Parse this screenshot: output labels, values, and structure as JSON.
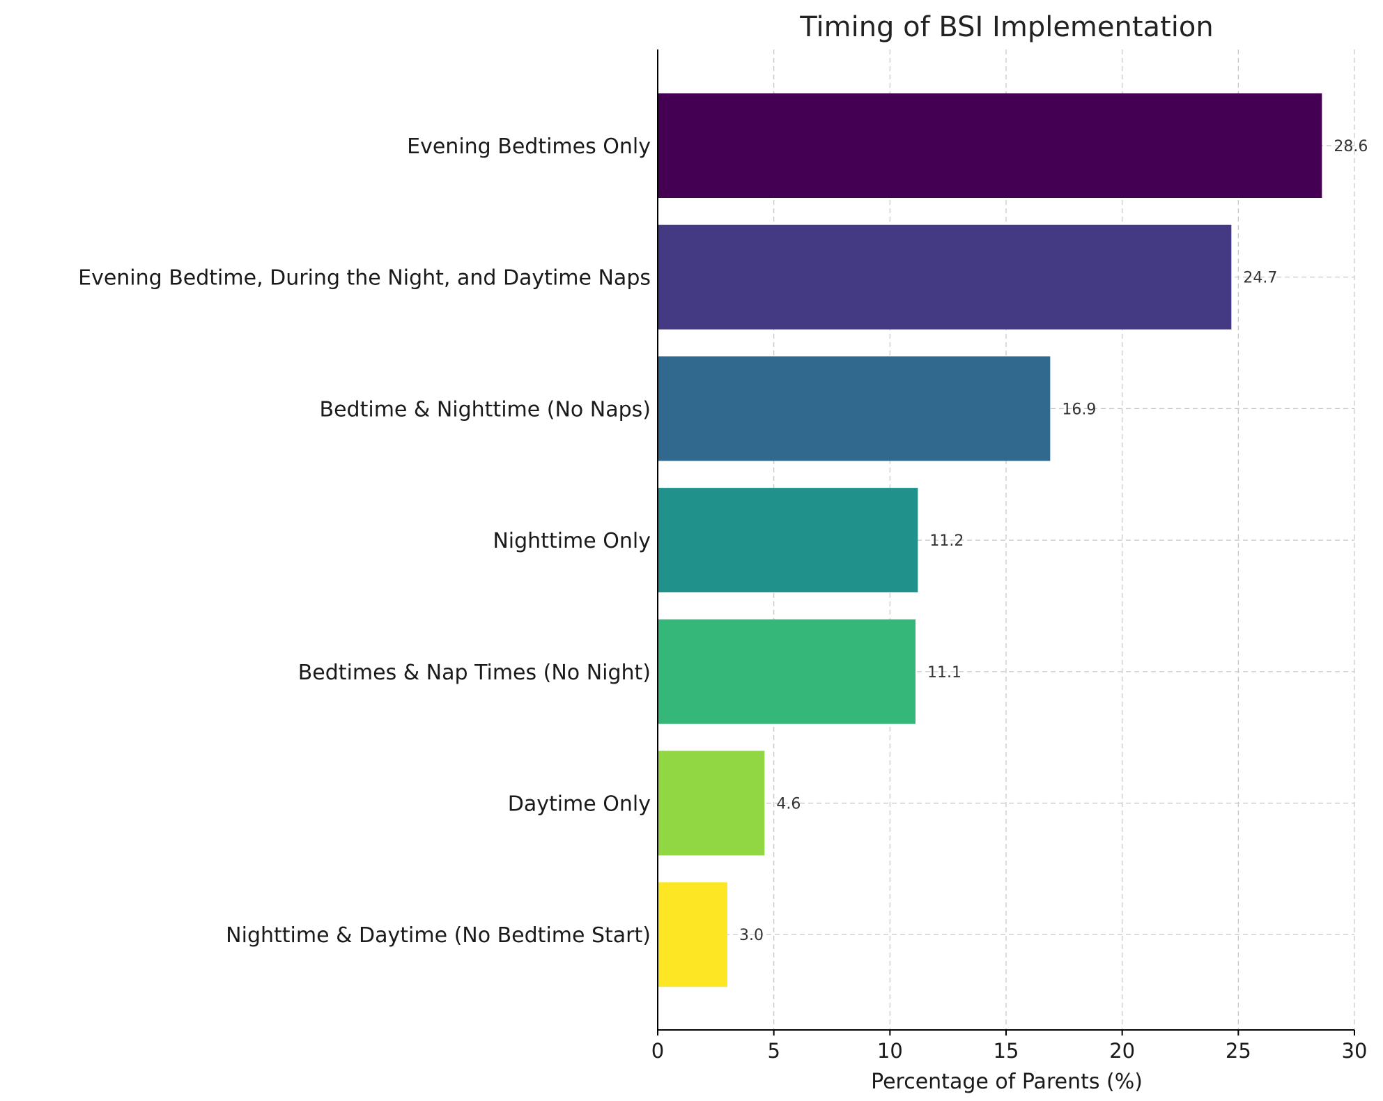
{
  "chart_data": {
    "type": "bar",
    "orientation": "horizontal",
    "title": "Timing of BSI Implementation",
    "xlabel": "Percentage of Parents (%)",
    "ylabel": "",
    "xlim": [
      0,
      30
    ],
    "xticks": [
      0,
      5,
      10,
      15,
      20,
      25,
      30
    ],
    "grid": true,
    "categories": [
      "Evening Bedtimes Only",
      "Evening Bedtime, During the Night, and Daytime Naps",
      "Bedtime & Nighttime (No Naps)",
      "Nighttime Only",
      "Bedtimes & Nap Times (No Night)",
      "Daytime Only",
      "Nighttime & Daytime (No Bedtime Start)"
    ],
    "values": [
      28.6,
      24.7,
      16.9,
      11.2,
      11.1,
      4.6,
      3.0
    ],
    "value_labels": [
      "28.6",
      "24.7",
      "16.9",
      "11.2",
      "11.1",
      "4.6",
      "3.0"
    ],
    "colors": [
      "#440154",
      "#443983",
      "#31688e",
      "#21918c",
      "#35b779",
      "#90d743",
      "#fde725"
    ]
  }
}
